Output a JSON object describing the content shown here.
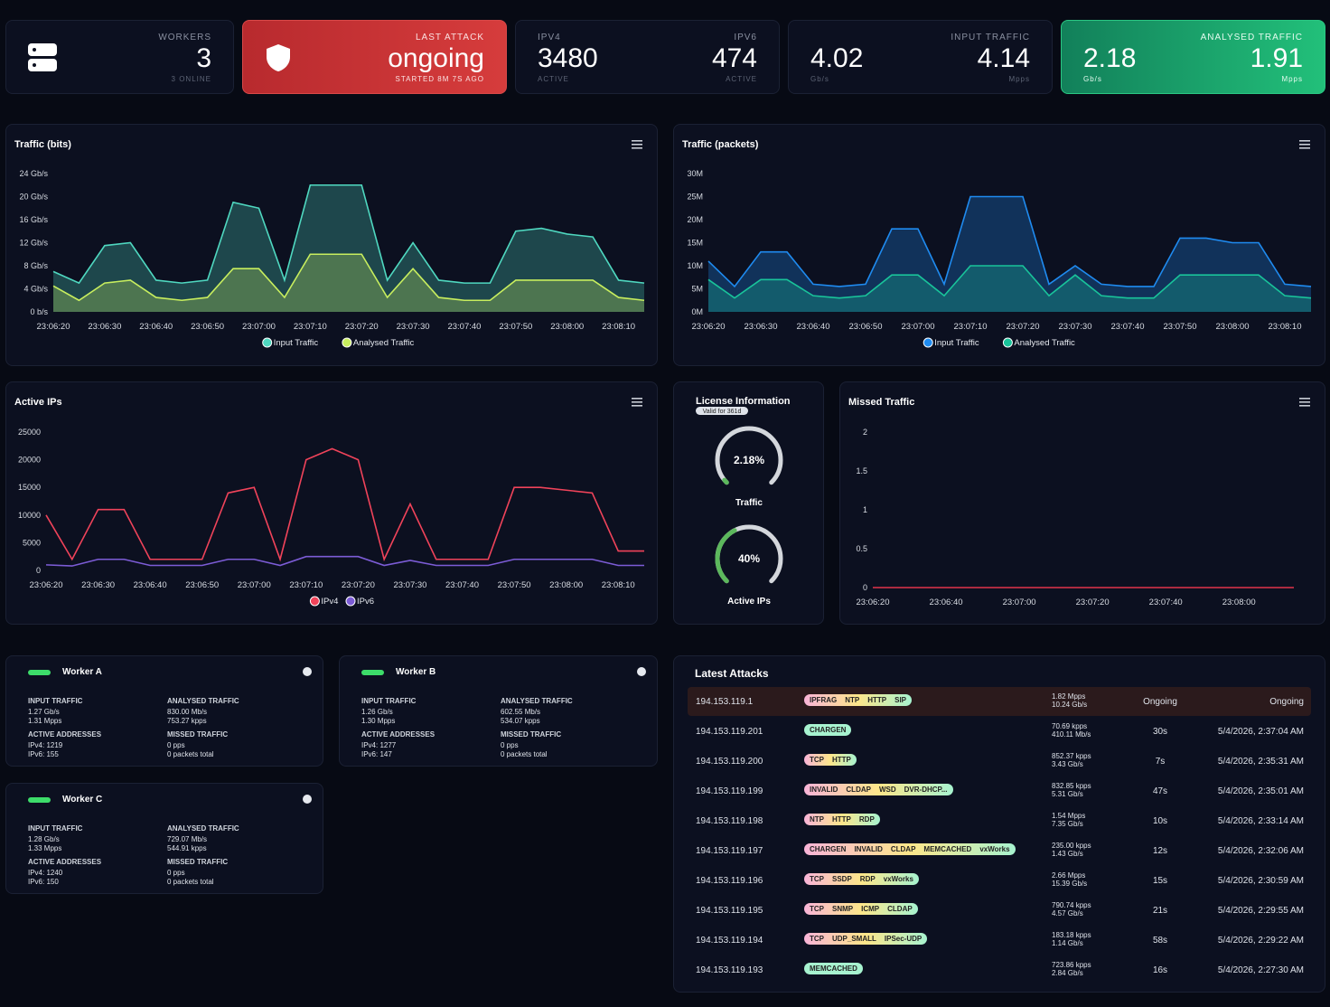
{
  "stats": {
    "workers": {
      "label": "WORKERS",
      "value": 3,
      "sub": "3 ONLINE"
    },
    "last_attack": {
      "label": "LAST ATTACK",
      "value": "ongoing",
      "sub": "STARTED 8M 7S AGO"
    },
    "ipv4": {
      "label": "IPV4",
      "value": 3480,
      "sub": "ACTIVE"
    },
    "ipv6": {
      "label": "IPV6",
      "value": 474,
      "sub": "ACTIVE"
    },
    "input_traffic": {
      "label": "INPUT TRAFFIC",
      "left": {
        "value": 4.02,
        "sub": "Gb/s"
      },
      "right": {
        "value": 4.14,
        "sub": "Mpps"
      }
    },
    "analysed_traffic": {
      "label": "ANALYSED TRAFFIC",
      "left": {
        "value": 2.18,
        "sub": "Gb/s"
      },
      "right": {
        "value": 1.91,
        "sub": "Mpps"
      }
    }
  },
  "charts": {
    "traffic_bits": {
      "type": "area",
      "title": "Traffic (bits)",
      "categories": [
        "23:06:20",
        null,
        "23:06:30",
        null,
        "23:06:40",
        null,
        "23:06:50",
        null,
        "23:07:00",
        null,
        "23:07:10",
        null,
        "23:07:20",
        null,
        "23:07:30",
        null,
        "23:07:40",
        null,
        "23:07:50",
        null,
        "23:08:00",
        null,
        "23:08:10",
        null
      ],
      "ylim": [
        0,
        24
      ],
      "yticks": [
        {
          "value": 0,
          "label": "0 b/s"
        },
        {
          "value": 4,
          "label": "4 Gb/s"
        },
        {
          "value": 8,
          "label": "8 Gb/s"
        },
        {
          "value": 12,
          "label": "12 Gb/s"
        },
        {
          "value": 16,
          "label": "16 Gb/s"
        },
        {
          "value": 20,
          "label": "20 Gb/s"
        },
        {
          "value": 24,
          "label": "24 Gb/s"
        }
      ],
      "series": [
        {
          "name": "Input Traffic",
          "color": "#4fd8c0",
          "values": [
            7,
            5,
            11.5,
            12,
            5.5,
            5,
            5.5,
            19,
            18,
            5.5,
            22,
            22,
            22,
            5.5,
            12,
            5.5,
            5,
            5,
            14,
            14.5,
            13.5,
            13,
            5.5,
            5
          ]
        },
        {
          "name": "Analysed Traffic",
          "color": "#c8ee5e",
          "values": [
            4.5,
            2,
            5,
            5.5,
            2.5,
            2,
            2.5,
            7.5,
            7.5,
            2.5,
            10,
            10,
            10,
            2.5,
            7.5,
            2.5,
            2,
            2,
            5.5,
            5.5,
            5.5,
            5.5,
            2.5,
            2
          ]
        }
      ]
    },
    "traffic_packets": {
      "type": "area",
      "title": "Traffic (packets)",
      "categories": [
        "23:06:20",
        null,
        "23:06:30",
        null,
        "23:06:40",
        null,
        "23:06:50",
        null,
        "23:07:00",
        null,
        "23:07:10",
        null,
        "23:07:20",
        null,
        "23:07:30",
        null,
        "23:07:40",
        null,
        "23:07:50",
        null,
        "23:08:00",
        null,
        "23:08:10",
        null
      ],
      "ylim": [
        0,
        30
      ],
      "yticks": [
        {
          "value": 0,
          "label": "0M"
        },
        {
          "value": 5,
          "label": "5M"
        },
        {
          "value": 10,
          "label": "10M"
        },
        {
          "value": 15,
          "label": "15M"
        },
        {
          "value": 20,
          "label": "20M"
        },
        {
          "value": 25,
          "label": "25M"
        },
        {
          "value": 30,
          "label": "30M"
        }
      ],
      "series": [
        {
          "name": "Input Traffic",
          "color": "#1f8bf0",
          "values": [
            11,
            5.5,
            13,
            13,
            6,
            5.5,
            6,
            18,
            18,
            6,
            25,
            25,
            25,
            6,
            10,
            6,
            5.5,
            5.5,
            16,
            16,
            15,
            15,
            6,
            5.5
          ]
        },
        {
          "name": "Analysed Traffic",
          "color": "#19c49a",
          "values": [
            7,
            3,
            7,
            7,
            3.5,
            3,
            3.5,
            8,
            8,
            3.5,
            10,
            10,
            10,
            3.5,
            8,
            3.5,
            3,
            3,
            8,
            8,
            8,
            8,
            3.5,
            3
          ]
        }
      ]
    },
    "active_ips": {
      "type": "line",
      "title": "Active IPs",
      "categories": [
        "23:06:20",
        null,
        "23:06:30",
        null,
        "23:06:40",
        null,
        "23:06:50",
        null,
        "23:07:00",
        null,
        "23:07:10",
        null,
        "23:07:20",
        null,
        "23:07:30",
        null,
        "23:07:40",
        null,
        "23:07:50",
        null,
        "23:08:00",
        null,
        "23:08:10",
        null
      ],
      "ylim": [
        0,
        25000
      ],
      "yticks": [
        0,
        5000,
        10000,
        15000,
        20000,
        25000
      ],
      "series": [
        {
          "name": "IPv4",
          "color": "#f0435a",
          "values": [
            10000,
            2000,
            11000,
            11000,
            2000,
            2000,
            2000,
            14000,
            15000,
            2000,
            20000,
            22000,
            20000,
            2000,
            12000,
            2000,
            2000,
            2000,
            15000,
            15000,
            14500,
            14000,
            3500,
            3500
          ]
        },
        {
          "name": "IPv6",
          "color": "#7c5cd6",
          "values": [
            1000,
            800,
            2000,
            2000,
            900,
            900,
            900,
            2000,
            2000,
            900,
            2500,
            2500,
            2500,
            900,
            1800,
            900,
            900,
            900,
            2000,
            2000,
            2000,
            2000,
            900,
            900
          ]
        }
      ]
    },
    "missed_traffic": {
      "type": "line",
      "title": "Missed Traffic",
      "categories": [
        "23:06:20",
        null,
        null,
        null,
        "23:06:40",
        null,
        null,
        null,
        "23:07:00",
        null,
        null,
        null,
        "23:07:20",
        null,
        null,
        null,
        "23:07:40",
        null,
        null,
        null,
        "23:08:00",
        null,
        null,
        null
      ],
      "ylim": [
        0,
        2
      ],
      "yticks": [
        0,
        0.5,
        1,
        1.5,
        2
      ],
      "series": [
        {
          "name": "Missed Traffic",
          "color": "#e0344a",
          "values": [
            0,
            0,
            0,
            0,
            0,
            0,
            0,
            0,
            0,
            0,
            0,
            0,
            0,
            0,
            0,
            0,
            0,
            0,
            0,
            0,
            0,
            0,
            0,
            0
          ]
        }
      ]
    }
  },
  "license": {
    "title": "License Information",
    "badge": "Valid for 361d",
    "lim": [
      0,
      100
    ],
    "gauges": [
      {
        "label": "Traffic",
        "value": 2.18,
        "value_label": "2.18%",
        "color": "#5cb85c"
      },
      {
        "label": "Active IPs",
        "value": 40,
        "value_label": "40%",
        "color": "#5cb85c"
      }
    ]
  },
  "workers": {
    "labels": {
      "input": "INPUT TRAFFIC",
      "analysed": "ANALYSED TRAFFIC",
      "active": "ACTIVE ADDRESSES",
      "missed": "MISSED TRAFFIC"
    },
    "items": [
      {
        "name": "Worker A",
        "input": [
          "1.27 Gb/s",
          "1.31 Mpps"
        ],
        "analysed": [
          "830.00 Mb/s",
          "753.27 kpps"
        ],
        "active": [
          "IPv4: 1219",
          "IPv6: 155"
        ],
        "missed": [
          "0 pps",
          "0 packets total"
        ]
      },
      {
        "name": "Worker B",
        "input": [
          "1.26 Gb/s",
          "1.30 Mpps"
        ],
        "analysed": [
          "602.55 Mb/s",
          "534.07 kpps"
        ],
        "active": [
          "IPv4: 1277",
          "IPv6: 147"
        ],
        "missed": [
          "0 pps",
          "0 packets total"
        ]
      },
      {
        "name": "Worker C",
        "input": [
          "1.28 Gb/s",
          "1.33 Mpps"
        ],
        "analysed": [
          "729.07 Mb/s",
          "544.91 kpps"
        ],
        "active": [
          "IPv4: 1240",
          "IPv6: 150"
        ],
        "missed": [
          "0 pps",
          "0 packets total"
        ]
      }
    ]
  },
  "latest_attacks": {
    "title": "Latest Attacks",
    "rows": [
      {
        "ip": "194.153.119.1",
        "protocols": [
          "IPFRAG",
          "NTP",
          "HTTP",
          "SIP"
        ],
        "rate": [
          "1.82 Mpps",
          "10.24 Gb/s"
        ],
        "duration": "Ongoing",
        "time": "Ongoing"
      },
      {
        "ip": "194.153.119.201",
        "protocols": [
          "CHARGEN"
        ],
        "rate": [
          "70.69 kpps",
          "410.11 Mb/s"
        ],
        "duration": "30s",
        "time": "5/4/2026, 2:37:04 AM"
      },
      {
        "ip": "194.153.119.200",
        "protocols": [
          "TCP",
          "HTTP"
        ],
        "rate": [
          "852.37 kpps",
          "3.43 Gb/s"
        ],
        "duration": "7s",
        "time": "5/4/2026, 2:35:31 AM"
      },
      {
        "ip": "194.153.119.199",
        "protocols": [
          "INVALID",
          "CLDAP",
          "WSD",
          "DVR-DHCP..."
        ],
        "rate": [
          "832.85 kpps",
          "5.31 Gb/s"
        ],
        "duration": "47s",
        "time": "5/4/2026, 2:35:01 AM"
      },
      {
        "ip": "194.153.119.198",
        "protocols": [
          "NTP",
          "HTTP",
          "RDP"
        ],
        "rate": [
          "1.54 Mpps",
          "7.35 Gb/s"
        ],
        "duration": "10s",
        "time": "5/4/2026, 2:33:14 AM"
      },
      {
        "ip": "194.153.119.197",
        "protocols": [
          "CHARGEN",
          "INVALID",
          "CLDAP",
          "MEMCACHED",
          "vxWorks"
        ],
        "rate": [
          "235.00 kpps",
          "1.43 Gb/s"
        ],
        "duration": "12s",
        "time": "5/4/2026, 2:32:06 AM"
      },
      {
        "ip": "194.153.119.196",
        "protocols": [
          "TCP",
          "SSDP",
          "RDP",
          "vxWorks"
        ],
        "rate": [
          "2.66 Mpps",
          "15.39 Gb/s"
        ],
        "duration": "15s",
        "time": "5/4/2026, 2:30:59 AM"
      },
      {
        "ip": "194.153.119.195",
        "protocols": [
          "TCP",
          "SNMP",
          "ICMP",
          "CLDAP"
        ],
        "rate": [
          "790.74 kpps",
          "4.57 Gb/s"
        ],
        "duration": "21s",
        "time": "5/4/2026, 2:29:55 AM"
      },
      {
        "ip": "194.153.119.194",
        "protocols": [
          "TCP",
          "UDP_SMALL",
          "IPSec-UDP"
        ],
        "rate": [
          "183.18 kpps",
          "1.14 Gb/s"
        ],
        "duration": "58s",
        "time": "5/4/2026, 2:29:22 AM"
      },
      {
        "ip": "194.153.119.193",
        "protocols": [
          "MEMCACHED"
        ],
        "rate": [
          "723.86 kpps",
          "2.84 Gb/s"
        ],
        "duration": "16s",
        "time": "5/4/2026, 2:27:30 AM"
      }
    ]
  }
}
